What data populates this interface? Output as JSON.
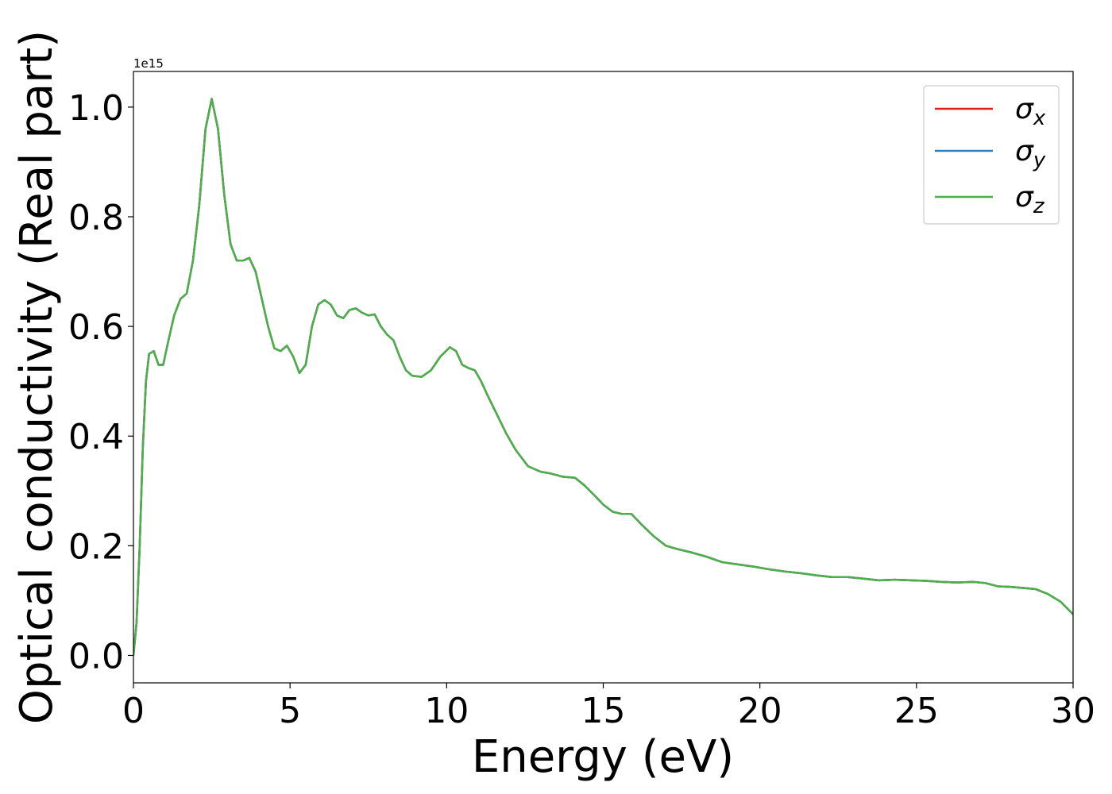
{
  "chart_data": {
    "type": "line",
    "title": "",
    "xlabel": "Energy (eV)",
    "ylabel": "Optical conductivity (Real part)",
    "offset_label": "1e15",
    "y_scale_factor": 1000000000000000.0,
    "xlim": [
      0,
      30
    ],
    "ylim": [
      -0.05,
      1.065
    ],
    "x_ticks": [
      "0",
      "5",
      "10",
      "15",
      "20",
      "25",
      "30"
    ],
    "y_ticks": [
      "0.0",
      "0.2",
      "0.4",
      "0.6",
      "0.8",
      "1.0"
    ],
    "grid": false,
    "legend_position": "top-right",
    "series": [
      {
        "name": "σx",
        "label_main": "σ",
        "label_sub": "x",
        "color": "#e41a1c"
      },
      {
        "name": "σy",
        "label_main": "σ",
        "label_sub": "y",
        "color": "#377eb8"
      },
      {
        "name": "σz",
        "label_main": "σ",
        "label_sub": "z",
        "color": "#4daf4a"
      }
    ],
    "x": [
      0,
      0.1,
      0.2,
      0.3,
      0.4,
      0.5,
      0.65,
      0.8,
      0.95,
      1.1,
      1.3,
      1.5,
      1.7,
      1.9,
      2.1,
      2.3,
      2.5,
      2.7,
      2.9,
      3.1,
      3.3,
      3.5,
      3.7,
      3.9,
      4.1,
      4.3,
      4.5,
      4.7,
      4.9,
      5.1,
      5.3,
      5.5,
      5.7,
      5.9,
      6.1,
      6.3,
      6.5,
      6.7,
      6.9,
      7.1,
      7.3,
      7.5,
      7.7,
      7.9,
      8.1,
      8.3,
      8.5,
      8.7,
      8.9,
      9.2,
      9.5,
      9.8,
      10.1,
      10.3,
      10.5,
      10.7,
      10.9,
      11.1,
      11.3,
      11.6,
      11.9,
      12.2,
      12.6,
      13.0,
      13.3,
      13.7,
      14.1,
      14.4,
      14.7,
      15.0,
      15.3,
      15.6,
      15.9,
      16.2,
      16.6,
      17.0,
      17.3,
      17.8,
      18.3,
      18.8,
      19.3,
      19.8,
      20.3,
      20.8,
      21.3,
      21.8,
      22.3,
      22.8,
      23.3,
      23.8,
      24.3,
      24.8,
      25.3,
      25.8,
      26.3,
      26.8,
      27.2,
      27.6,
      28.0,
      28.4,
      28.8,
      29.2,
      29.6,
      30.0
    ],
    "y": [
      0.0,
      0.06,
      0.2,
      0.38,
      0.5,
      0.55,
      0.555,
      0.53,
      0.53,
      0.57,
      0.62,
      0.65,
      0.66,
      0.72,
      0.82,
      0.96,
      1.015,
      0.96,
      0.84,
      0.75,
      0.72,
      0.72,
      0.725,
      0.7,
      0.65,
      0.6,
      0.56,
      0.555,
      0.565,
      0.545,
      0.515,
      0.53,
      0.6,
      0.64,
      0.648,
      0.64,
      0.62,
      0.615,
      0.63,
      0.633,
      0.625,
      0.62,
      0.622,
      0.6,
      0.585,
      0.575,
      0.545,
      0.52,
      0.51,
      0.508,
      0.52,
      0.545,
      0.562,
      0.555,
      0.53,
      0.524,
      0.52,
      0.5,
      0.475,
      0.44,
      0.405,
      0.375,
      0.345,
      0.335,
      0.332,
      0.326,
      0.324,
      0.31,
      0.293,
      0.275,
      0.262,
      0.258,
      0.258,
      0.24,
      0.218,
      0.2,
      0.195,
      0.188,
      0.18,
      0.17,
      0.166,
      0.162,
      0.157,
      0.153,
      0.15,
      0.146,
      0.143,
      0.143,
      0.14,
      0.137,
      0.138,
      0.137,
      0.136,
      0.134,
      0.133,
      0.134,
      0.132,
      0.126,
      0.125,
      0.123,
      0.121,
      0.112,
      0.098,
      0.075
    ]
  }
}
